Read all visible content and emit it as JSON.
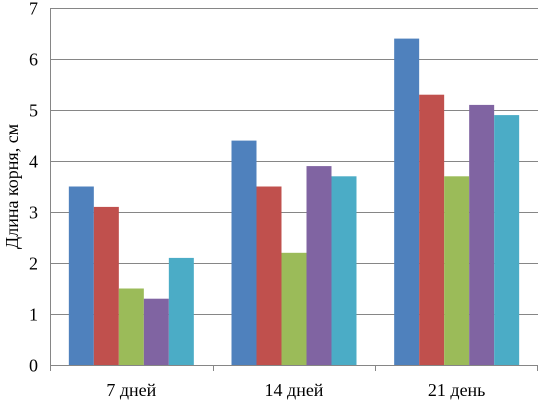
{
  "chart_data": {
    "type": "bar",
    "title": "",
    "xlabel": "",
    "ylabel": "Длина корня, см",
    "ylim": [
      0,
      7
    ],
    "yticks": [
      0,
      1,
      2,
      3,
      4,
      5,
      6,
      7
    ],
    "grid": true,
    "legend": "none",
    "categories": [
      "7 дней",
      "14 дней",
      "21 день"
    ],
    "series": [
      {
        "color": "#4F81BD",
        "values": [
          3.5,
          4.4,
          6.4
        ]
      },
      {
        "color": "#C0504D",
        "values": [
          3.1,
          3.5,
          5.3
        ]
      },
      {
        "color": "#9BBB59",
        "values": [
          1.5,
          2.2,
          3.7
        ]
      },
      {
        "color": "#8064A2",
        "values": [
          1.3,
          3.9,
          5.1
        ]
      },
      {
        "color": "#4BACC6",
        "values": [
          2.1,
          3.7,
          4.9
        ]
      }
    ]
  }
}
